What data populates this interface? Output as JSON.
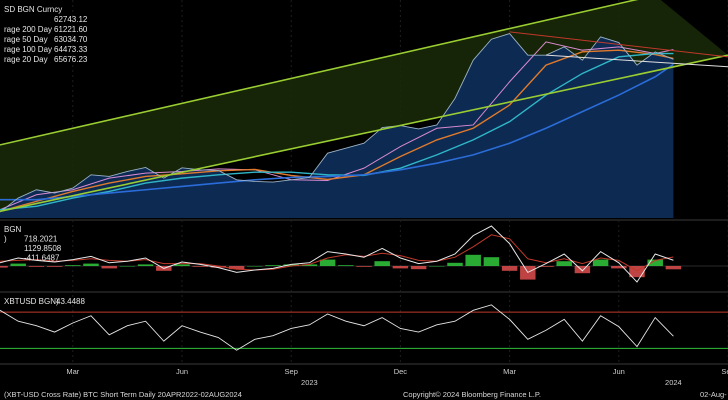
{
  "footer": {
    "left": "(XBT-USD Cross Rate) BTC Short Term  Daily 20APR2022-02AUG2024",
    "copyright": "Copyright© 2024 Bloomberg Finance L.P.",
    "right": "02-Aug-"
  },
  "colors": {
    "price_fill": "#0d2a52",
    "price_line": "#9ab2c6",
    "ma20": "#d98bd0",
    "ma50": "#e07a2c",
    "ma100": "#2fb7c8",
    "ma200": "#2a6cd8",
    "channel": "#9acd32",
    "macd_pos": "#2fbf3a",
    "macd_neg": "#d44a4a",
    "rsi_line": "#e6e6e6",
    "rsi_upper": "#c0392b",
    "rsi_lower": "#2fbf3a"
  },
  "chart_data": [
    {
      "type": "line",
      "panel": "price",
      "legend": [
        {
          "label": "SD BGN Curncy",
          "value": ""
        },
        {
          "label": "",
          "value": "62743.12"
        },
        {
          "label": "rage 200 Day",
          "value": "61221.60"
        },
        {
          "label": "rage 50 Day",
          "value": "63034.70"
        },
        {
          "label": "rage 100 Day",
          "value": "64473.33"
        },
        {
          "label": "rage 20 Day",
          "value": "65676.23"
        }
      ],
      "x_ticks": [
        "Mar",
        "Jun",
        "Sep",
        "Dec",
        "Mar",
        "Jun",
        "Sep"
      ],
      "year_labels": [
        "2023",
        "2024"
      ],
      "x_month_range": [
        0,
        20
      ],
      "ylim": [
        15000,
        80000
      ],
      "series": [
        {
          "name": "SD BGN Curncy",
          "x": [
            0,
            0.5,
            1,
            1.5,
            2,
            2.5,
            3,
            3.5,
            4,
            4.5,
            5,
            5.5,
            6,
            6.5,
            7,
            7.5,
            8,
            8.5,
            9,
            9.5,
            10,
            10.5,
            11,
            11.5,
            12,
            12.5,
            13,
            13.5,
            14,
            14.5,
            15,
            15.5,
            16,
            16.5,
            17,
            17.5,
            18,
            18.5
          ],
          "values": [
            16800,
            21000,
            23500,
            22500,
            24000,
            28000,
            27500,
            29000,
            30200,
            27000,
            30100,
            29500,
            29300,
            26500,
            26000,
            25800,
            26500,
            27200,
            34500,
            36000,
            37500,
            42200,
            42800,
            41800,
            43000,
            51000,
            62500,
            68800,
            70500,
            64000,
            64000,
            66500,
            62500,
            69500,
            67800,
            61000,
            65000,
            62743
          ]
        },
        {
          "name": "rage 20 Day",
          "x": [
            0,
            1,
            2,
            3,
            4,
            5,
            6,
            7,
            8,
            9,
            10,
            11,
            12,
            13,
            14,
            15,
            16,
            17,
            18,
            18.5
          ],
          "values": [
            17500,
            22000,
            23500,
            27000,
            28500,
            29000,
            29800,
            29500,
            26500,
            26300,
            30000,
            36500,
            42000,
            43000,
            56000,
            68000,
            65500,
            66500,
            64500,
            65676
          ]
        },
        {
          "name": "rage 50 Day",
          "x": [
            0,
            1,
            2,
            3,
            4,
            5,
            6,
            7,
            8,
            9,
            10,
            11,
            12,
            13,
            14,
            15,
            16,
            17,
            18,
            18.5
          ],
          "values": [
            17000,
            20000,
            23000,
            25500,
            27500,
            28300,
            29200,
            29600,
            27800,
            26600,
            28000,
            33500,
            38500,
            42000,
            49000,
            61000,
            65000,
            65500,
            64200,
            63035
          ]
        },
        {
          "name": "rage 100 Day",
          "x": [
            0,
            1,
            2,
            3,
            4,
            5,
            6,
            7,
            8,
            9,
            10,
            11,
            12,
            13,
            14,
            15,
            16,
            17,
            18,
            18.5
          ],
          "values": [
            17500,
            18500,
            21000,
            23000,
            25500,
            27000,
            28000,
            28800,
            28800,
            28000,
            27800,
            30000,
            34000,
            38500,
            44000,
            52000,
            58500,
            63500,
            64500,
            64473
          ]
        },
        {
          "name": "rage 200 Day",
          "x": [
            0,
            1,
            2,
            3,
            4,
            5,
            6,
            7,
            8,
            9,
            10,
            11,
            12,
            13,
            14,
            15,
            16,
            17,
            18,
            18.5
          ],
          "values": [
            20500,
            20500,
            21500,
            22500,
            23500,
            24500,
            25500,
            26500,
            27200,
            27500,
            28000,
            29500,
            31500,
            34000,
            37500,
            42000,
            47000,
            52000,
            57500,
            61222
          ]
        }
      ],
      "channel": {
        "lower": [
          [
            0,
            17000
          ],
          [
            20,
            64000
          ]
        ],
        "upper": [
          [
            0,
            37000
          ],
          [
            18,
            82000
          ]
        ]
      },
      "triangle": {
        "upper": [
          [
            14,
            71000
          ],
          [
            20,
            63500
          ]
        ],
        "lower": [
          [
            15,
            64000
          ],
          [
            20,
            60500
          ]
        ]
      }
    },
    {
      "type": "bar",
      "panel": "macd",
      "legend": [
        {
          "label": "BGN",
          "value": ""
        },
        {
          "label": ")",
          "value": "718.2021"
        },
        {
          "label": "",
          "value": "1129.8508"
        },
        {
          "label": "",
          "value": "-411.6487"
        }
      ],
      "ylim": [
        -3000,
        5500
      ],
      "x": [
        0,
        0.5,
        1,
        1.5,
        2,
        2.5,
        3,
        3.5,
        4,
        4.5,
        5,
        5.5,
        6,
        6.5,
        7,
        7.5,
        8,
        8.5,
        9,
        9.5,
        10,
        10.5,
        11,
        11.5,
        12,
        12.5,
        13,
        13.5,
        14,
        14.5,
        15,
        15.5,
        16,
        16.5,
        17,
        17.5,
        18,
        18.5
      ],
      "macd": [
        400,
        1000,
        700,
        500,
        800,
        1200,
        400,
        600,
        1000,
        -300,
        500,
        200,
        -200,
        -800,
        -500,
        -300,
        200,
        400,
        1800,
        1500,
        1100,
        2200,
        1000,
        300,
        600,
        1500,
        3800,
        5000,
        2800,
        -800,
        300,
        1500,
        -600,
        1800,
        400,
        -2000,
        1500,
        718
      ],
      "signal": [
        600,
        700,
        800,
        600,
        700,
        900,
        700,
        600,
        800,
        300,
        300,
        300,
        0,
        -400,
        -500,
        -400,
        0,
        200,
        1000,
        1400,
        1200,
        1600,
        1300,
        700,
        600,
        1100,
        2400,
        3900,
        3400,
        900,
        400,
        900,
        300,
        1000,
        700,
        -600,
        700,
        1130
      ],
      "histogram": [
        -200,
        300,
        -100,
        -100,
        100,
        300,
        -300,
        0,
        200,
        -600,
        200,
        -100,
        -200,
        -400,
        0,
        100,
        200,
        200,
        800,
        100,
        -100,
        600,
        -300,
        -400,
        0,
        400,
        1400,
        1100,
        -600,
        -1700,
        -100,
        600,
        -900,
        800,
        -300,
        -1400,
        800,
        -412
      ]
    },
    {
      "type": "line",
      "panel": "rsi",
      "legend": [
        {
          "label": "XBTUSD BGN)",
          "value": "43.4488"
        }
      ],
      "ylim": [
        15,
        90
      ],
      "levels": [
        70,
        30
      ],
      "x": [
        0,
        0.5,
        1,
        1.5,
        2,
        2.5,
        3,
        3.5,
        4,
        4.5,
        5,
        5.5,
        6,
        6.5,
        7,
        7.5,
        8,
        8.5,
        9,
        9.5,
        10,
        10.5,
        11,
        11.5,
        12,
        12.5,
        13,
        13.5,
        14,
        14.5,
        15,
        15.5,
        16,
        16.5,
        17,
        17.5,
        18,
        18.5
      ],
      "values": [
        72,
        60,
        55,
        48,
        58,
        66,
        45,
        55,
        60,
        38,
        55,
        48,
        42,
        28,
        40,
        44,
        52,
        56,
        68,
        60,
        55,
        64,
        52,
        48,
        56,
        60,
        72,
        78,
        62,
        40,
        50,
        62,
        38,
        66,
        54,
        32,
        64,
        43.4488
      ]
    }
  ]
}
